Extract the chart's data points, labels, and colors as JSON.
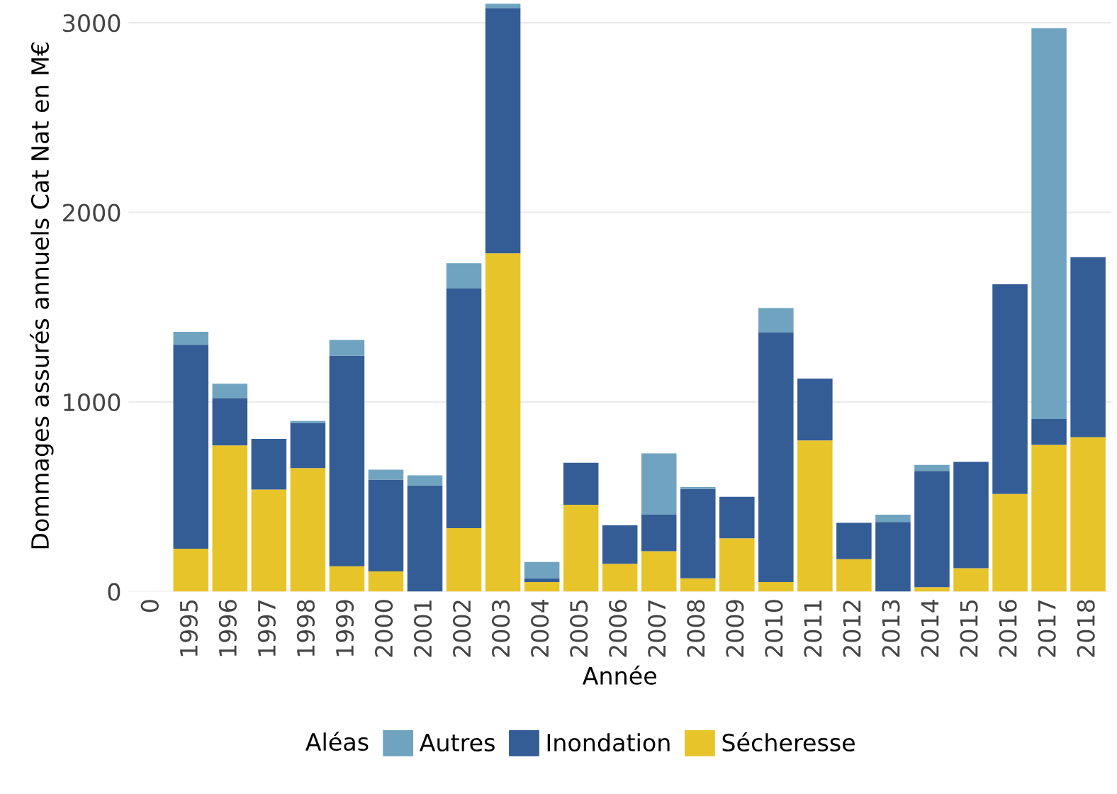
{
  "chart_data": {
    "type": "bar",
    "stacked": true,
    "xlabel": "Année",
    "ylabel": "Dommages assurés annuels Cat Nat en M€",
    "legend_title": "Aléas",
    "legend": "bottom",
    "grid": "y",
    "categories": [
      "0",
      "1995",
      "1996",
      "1997",
      "1998",
      "1999",
      "2000",
      "2001",
      "2002",
      "2003",
      "2004",
      "2005",
      "2006",
      "2007",
      "2008",
      "2009",
      "2010",
      "2011",
      "2012",
      "2013",
      "2014",
      "2015",
      "2016",
      "2017",
      "2018"
    ],
    "series": [
      {
        "name": "Sécheresse",
        "color": "#e8c42b",
        "values": [
          null,
          226,
          771,
          538,
          651,
          133,
          106,
          0,
          334,
          1784,
          50,
          458,
          146,
          213,
          70,
          281,
          50,
          797,
          171,
          0,
          23,
          123,
          515,
          774,
          814
        ]
      },
      {
        "name": "Inondation",
        "color": "#345d96",
        "values": [
          null,
          1076,
          249,
          267,
          239,
          1111,
          484,
          560,
          1264,
          1294,
          20,
          221,
          203,
          192,
          471,
          219,
          1317,
          326,
          191,
          367,
          613,
          561,
          1106,
          136,
          950
        ]
      },
      {
        "name": "Autres",
        "color": "#6fa3c0",
        "values": [
          null,
          68,
          76,
          0,
          10,
          83,
          53,
          53,
          134,
          22,
          86,
          0,
          0,
          324,
          10,
          0,
          128,
          0,
          0,
          38,
          32,
          0,
          0,
          2061,
          0
        ]
      }
    ],
    "ylim": [
      0,
      3120
    ],
    "yticks": [
      0,
      1000,
      2000,
      3000
    ]
  }
}
